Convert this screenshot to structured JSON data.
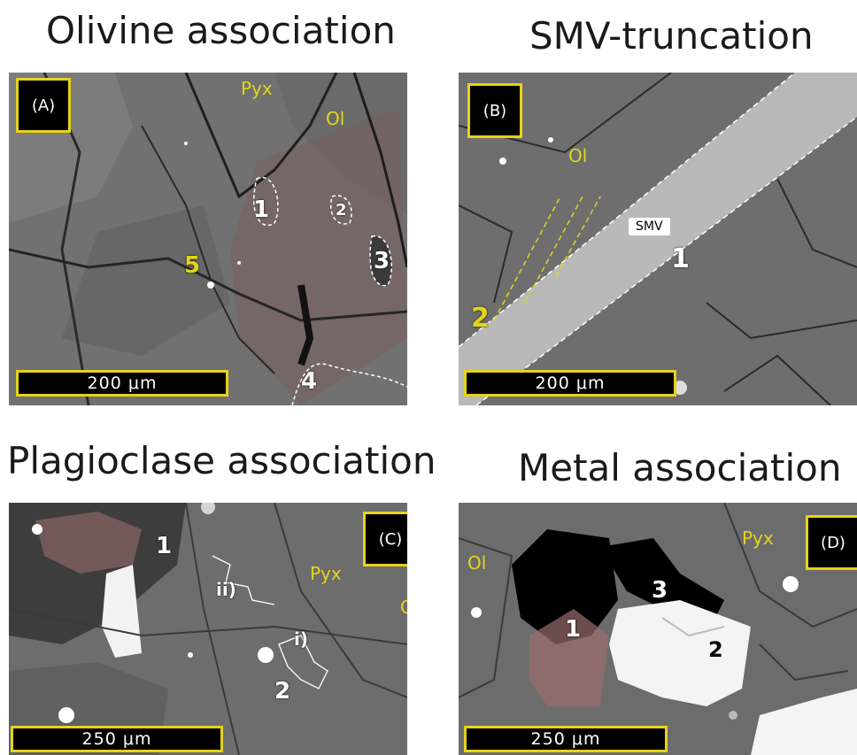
{
  "panels": {
    "a": {
      "title": "Olivine association",
      "tag": "(A)",
      "minerals": {
        "pyx": "Pyx",
        "ol": "Ol"
      },
      "markers": [
        "1",
        "2",
        "3",
        "4",
        "5"
      ],
      "scale": "200 μm"
    },
    "b": {
      "title": "SMV-truncation",
      "tag": "(B)",
      "minerals": {
        "ol": "Ol"
      },
      "smv": "SMV",
      "markers": [
        "1",
        "2"
      ],
      "scale": "200 μm"
    },
    "c": {
      "title": "Plagioclase association",
      "tag": "(C)",
      "minerals": {
        "pyx": "Pyx",
        "ol": "Ol"
      },
      "markers": [
        "1",
        "2"
      ],
      "roman": [
        "ii)",
        "i)"
      ],
      "scale": "250 μm"
    },
    "d": {
      "title": "Metal association",
      "tag": "(D)",
      "minerals": {
        "pyx": "Pyx",
        "ol": "Ol"
      },
      "markers": [
        "1",
        "2",
        "3"
      ],
      "scale": "250 μm"
    }
  },
  "colors": {
    "tag_border": "#e6d21c",
    "mineral_label": "#e3d51a",
    "highlight": "#c0504d"
  }
}
